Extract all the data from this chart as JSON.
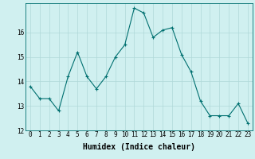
{
  "x": [
    0,
    1,
    2,
    3,
    4,
    5,
    6,
    7,
    8,
    9,
    10,
    11,
    12,
    13,
    14,
    15,
    16,
    17,
    18,
    19,
    20,
    21,
    22,
    23
  ],
  "y": [
    13.8,
    13.3,
    13.3,
    12.8,
    14.2,
    15.2,
    14.2,
    13.7,
    14.2,
    15.0,
    15.5,
    17.0,
    16.8,
    15.8,
    16.1,
    16.2,
    15.1,
    14.4,
    13.2,
    12.6,
    12.6,
    12.6,
    13.1,
    12.3
  ],
  "line_color": "#007070",
  "bg_color": "#d0f0f0",
  "grid_color": "#b0d8d8",
  "xlabel": "Humidex (Indice chaleur)",
  "xlim_min": -0.5,
  "xlim_max": 23.5,
  "ylim_min": 12.0,
  "ylim_max": 17.2,
  "yticks": [
    12,
    13,
    14,
    15,
    16
  ],
  "xticks": [
    0,
    1,
    2,
    3,
    4,
    5,
    6,
    7,
    8,
    9,
    10,
    11,
    12,
    13,
    14,
    15,
    16,
    17,
    18,
    19,
    20,
    21,
    22,
    23
  ],
  "marker": "+",
  "markersize": 3,
  "linewidth": 0.8,
  "xlabel_fontsize": 7,
  "tick_fontsize": 5.5
}
